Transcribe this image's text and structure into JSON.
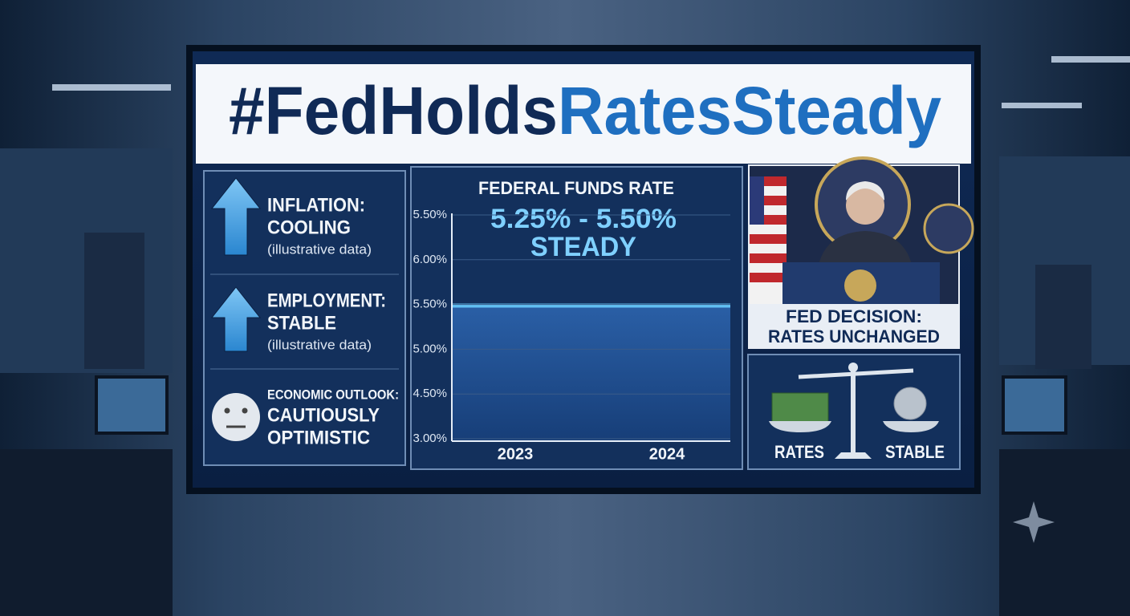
{
  "header": {
    "title_part1": "#FedHolds",
    "title_part2": "RatesSteady"
  },
  "indicators": [
    {
      "label": "INFLATION:",
      "value_lines": [
        "COOLING"
      ],
      "note": "(illustrative data)"
    },
    {
      "label": "EMPLOYMENT:",
      "value_lines": [
        "STABLE"
      ],
      "note": "(illustrative data)"
    },
    {
      "label": "ECONOMIC OUTLOOK:",
      "value_lines": [
        "CAUTIOUSLY",
        "OPTIMISTIC"
      ]
    }
  ],
  "chart": {
    "title": "FEDERAL FUNDS RATE",
    "range": "5.25% - 5.50%",
    "status": "STEADY",
    "y_labels": [
      "5.50%",
      "6.00%",
      "5.50%",
      "5.00%",
      "4.50%",
      "3.00%"
    ],
    "x_labels": [
      "2023",
      "2024"
    ]
  },
  "decision": {
    "caption_lines": [
      "FED DECISION:",
      "RATES UNCHANGED"
    ]
  },
  "balance": {
    "left": "RATES",
    "right": "STABLE"
  }
}
